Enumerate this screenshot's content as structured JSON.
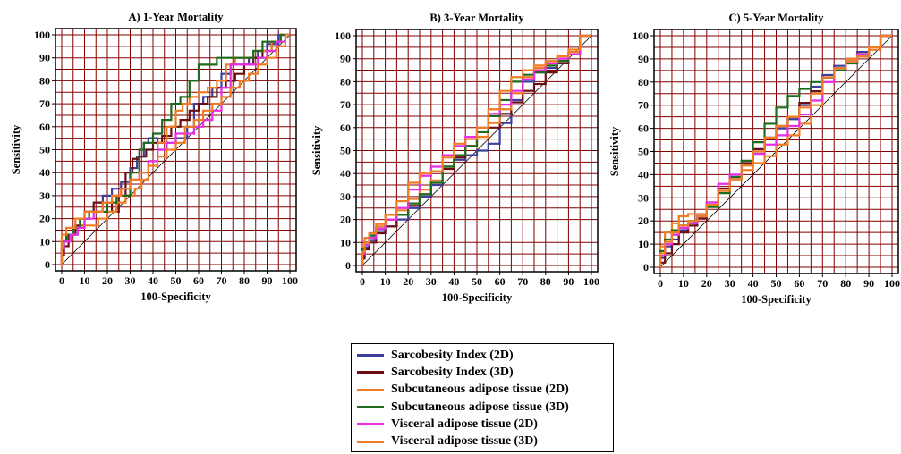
{
  "colors": {
    "grid": "#800000",
    "frame": "#000000",
    "reference": "#000000"
  },
  "axes": {
    "xlabel": "100-Specificity",
    "ylabel": "Sensitivity",
    "ticks": [
      "0",
      "10",
      "20",
      "30",
      "40",
      "50",
      "60",
      "70",
      "80",
      "90",
      "100"
    ]
  },
  "legend": {
    "entries": [
      {
        "name": "Sarcobesity Index (2D)",
        "color": "#3d3d9a"
      },
      {
        "name": "Sarcobesity Index (3D)",
        "color": "#6b0f14"
      },
      {
        "name": "Subcutaneous adipose tissue (2D)",
        "color": "#f07c24"
      },
      {
        "name": "Subcutaneous adipose tissue (3D)",
        "color": "#1e6b1e"
      },
      {
        "name": "Visceral adipose tissue (2D)",
        "color": "#e62ee6"
      },
      {
        "name": "Visceral adipose tissue (3D)",
        "color": "#f07c24"
      }
    ]
  },
  "chart_data": [
    {
      "type": "line",
      "title": "A) 1-Year Mortality",
      "xlabel": "100-Specificity",
      "ylabel": "Sensitivity",
      "xlim": [
        0,
        100
      ],
      "ylim": [
        0,
        100
      ],
      "grid": true,
      "reference_line": [
        [
          0,
          0
        ],
        [
          100,
          100
        ]
      ],
      "series": [
        {
          "name": "Sarcobesity Index (2D)",
          "color": "#3d3d9a",
          "x": [
            0,
            1,
            2,
            5,
            8,
            12,
            18,
            22,
            26,
            30,
            33,
            36,
            38,
            42,
            46,
            50,
            55,
            58,
            62,
            66,
            70,
            74,
            78,
            82,
            86,
            90,
            95,
            100
          ],
          "y": [
            0,
            6,
            10,
            13,
            16,
            20,
            23,
            30,
            33,
            36,
            42,
            47,
            53,
            55,
            50,
            53,
            55,
            60,
            70,
            73,
            77,
            83,
            87,
            87,
            90,
            93,
            96,
            100
          ]
        },
        {
          "name": "Sarcobesity Index (3D)",
          "color": "#6b0f14",
          "x": [
            0,
            1,
            3,
            6,
            10,
            14,
            18,
            22,
            25,
            28,
            31,
            34,
            37,
            40,
            44,
            48,
            52,
            56,
            60,
            64,
            68,
            72,
            76,
            80,
            84,
            88,
            92,
            96,
            100
          ],
          "y": [
            0,
            4,
            8,
            13,
            17,
            23,
            27,
            27,
            23,
            30,
            40,
            46,
            47,
            50,
            53,
            56,
            60,
            63,
            67,
            70,
            73,
            77,
            80,
            83,
            87,
            90,
            93,
            97,
            100
          ]
        },
        {
          "name": "Subcutaneous adipose tissue (2D)",
          "color": "#f07c24",
          "x": [
            0,
            2,
            5,
            8,
            12,
            16,
            20,
            24,
            28,
            32,
            35,
            38,
            42,
            46,
            50,
            53,
            56,
            60,
            64,
            68,
            72,
            76,
            80,
            84,
            88,
            92,
            96,
            100
          ],
          "y": [
            0,
            10,
            13,
            16,
            17,
            17,
            20,
            23,
            27,
            30,
            33,
            37,
            45,
            53,
            60,
            67,
            70,
            73,
            75,
            77,
            80,
            87,
            90,
            90,
            93,
            93,
            97,
            100
          ]
        },
        {
          "name": "Subcutaneous adipose tissue (3D)",
          "color": "#1e6b1e",
          "x": [
            0,
            2,
            5,
            8,
            12,
            16,
            20,
            24,
            28,
            30,
            34,
            36,
            40,
            44,
            48,
            52,
            56,
            60,
            64,
            68,
            72,
            76,
            80,
            84,
            88,
            92,
            96,
            100
          ],
          "y": [
            0,
            10,
            13,
            16,
            20,
            23,
            23,
            27,
            30,
            30,
            40,
            50,
            53,
            57,
            63,
            70,
            73,
            80,
            87,
            87,
            90,
            90,
            90,
            90,
            93,
            97,
            97,
            100
          ]
        },
        {
          "name": "Visceral adipose tissue (2D)",
          "color": "#e62ee6",
          "x": [
            0,
            1,
            4,
            7,
            10,
            14,
            18,
            22,
            26,
            30,
            34,
            38,
            42,
            46,
            50,
            54,
            58,
            62,
            66,
            70,
            74,
            78,
            82,
            86,
            90,
            94,
            98,
            100
          ],
          "y": [
            0,
            7,
            10,
            13,
            16,
            20,
            23,
            27,
            30,
            33,
            37,
            40,
            45,
            50,
            53,
            57,
            57,
            60,
            63,
            67,
            77,
            87,
            87,
            87,
            90,
            93,
            97,
            100
          ]
        },
        {
          "name": "Visceral adipose tissue (3D)",
          "color": "#f07c24",
          "x": [
            0,
            2,
            6,
            10,
            14,
            18,
            22,
            26,
            30,
            34,
            38,
            42,
            46,
            50,
            54,
            58,
            62,
            66,
            70,
            74,
            78,
            82,
            86,
            90,
            94,
            98,
            100
          ],
          "y": [
            0,
            13,
            16,
            20,
            23,
            23,
            27,
            30,
            33,
            37,
            40,
            43,
            47,
            50,
            53,
            60,
            63,
            67,
            70,
            73,
            77,
            80,
            83,
            87,
            90,
            95,
            100
          ]
        }
      ]
    },
    {
      "type": "line",
      "title": "B) 3-Year Mortality",
      "xlabel": "100-Specificity",
      "ylabel": "Sensitivity",
      "xlim": [
        0,
        100
      ],
      "ylim": [
        0,
        100
      ],
      "grid": true,
      "reference_line": [
        [
          0,
          0
        ],
        [
          100,
          100
        ]
      ],
      "series": [
        {
          "name": "Sarcobesity Index (2D)",
          "color": "#3d3d9a",
          "x": [
            0,
            1,
            3,
            6,
            10,
            15,
            20,
            25,
            30,
            35,
            40,
            45,
            50,
            55,
            60,
            65,
            70,
            75,
            80,
            85,
            90,
            95,
            100
          ],
          "y": [
            0,
            4,
            8,
            11,
            15,
            17,
            20,
            25,
            30,
            35,
            43,
            46,
            48,
            50,
            53,
            62,
            72,
            80,
            84,
            86,
            89,
            92,
            100
          ]
        },
        {
          "name": "Sarcobesity Index (3D)",
          "color": "#6b0f14",
          "x": [
            0,
            1,
            3,
            6,
            10,
            15,
            20,
            25,
            30,
            35,
            40,
            45,
            50,
            55,
            60,
            65,
            70,
            75,
            80,
            85,
            90,
            95,
            100
          ],
          "y": [
            0,
            3,
            7,
            10,
            14,
            17,
            22,
            26,
            31,
            36,
            42,
            47,
            52,
            56,
            60,
            66,
            71,
            76,
            79,
            84,
            88,
            92,
            100
          ]
        },
        {
          "name": "Subcutaneous adipose tissue (2D)",
          "color": "#f07c24",
          "x": [
            0,
            1,
            3,
            6,
            10,
            15,
            20,
            25,
            30,
            35,
            40,
            45,
            50,
            55,
            60,
            65,
            70,
            75,
            80,
            85,
            90,
            95,
            100
          ],
          "y": [
            0,
            8,
            12,
            14,
            17,
            20,
            24,
            29,
            33,
            37,
            43,
            48,
            52,
            56,
            62,
            68,
            75,
            82,
            86,
            88,
            90,
            93,
            100
          ]
        },
        {
          "name": "Subcutaneous adipose tissue (3D)",
          "color": "#1e6b1e",
          "x": [
            0,
            1,
            3,
            6,
            10,
            15,
            20,
            25,
            30,
            35,
            40,
            45,
            50,
            55,
            60,
            65,
            70,
            75,
            80,
            85,
            90,
            95,
            100
          ],
          "y": [
            0,
            7,
            10,
            13,
            16,
            20,
            22,
            27,
            31,
            36,
            43,
            48,
            52,
            58,
            65,
            72,
            80,
            83,
            84,
            87,
            89,
            92,
            100
          ]
        },
        {
          "name": "Visceral adipose tissue (2D)",
          "color": "#e62ee6",
          "x": [
            0,
            1,
            3,
            6,
            10,
            15,
            20,
            25,
            30,
            35,
            40,
            45,
            50,
            55,
            60,
            65,
            70,
            75,
            80,
            85,
            90,
            95,
            100
          ],
          "y": [
            0,
            5,
            9,
            12,
            16,
            20,
            25,
            33,
            39,
            43,
            48,
            52,
            56,
            60,
            66,
            70,
            76,
            81,
            85,
            88,
            90,
            92,
            100
          ]
        },
        {
          "name": "Visceral adipose tissue (3D)",
          "color": "#f07c24",
          "x": [
            0,
            1,
            3,
            6,
            10,
            15,
            20,
            25,
            30,
            35,
            40,
            45,
            50,
            55,
            60,
            65,
            70,
            75,
            80,
            85,
            90,
            95,
            100
          ],
          "y": [
            0,
            6,
            10,
            14,
            18,
            22,
            28,
            36,
            40,
            41,
            47,
            53,
            55,
            60,
            68,
            76,
            82,
            85,
            87,
            89,
            91,
            94,
            100
          ]
        }
      ]
    },
    {
      "type": "line",
      "title": "C) 5-Year Mortality",
      "xlabel": "100-Specificity",
      "ylabel": "Sensitivity",
      "xlim": [
        0,
        100
      ],
      "ylim": [
        0,
        100
      ],
      "grid": true,
      "reference_line": [
        [
          0,
          0
        ],
        [
          100,
          100
        ]
      ],
      "series": [
        {
          "name": "Sarcobesity Index (2D)",
          "color": "#3d3d9a",
          "x": [
            0,
            2,
            5,
            8,
            12,
            16,
            20,
            25,
            30,
            35,
            40,
            45,
            50,
            55,
            60,
            65,
            70,
            75,
            80,
            85,
            90,
            95,
            100
          ],
          "y": [
            0,
            4,
            9,
            12,
            16,
            19,
            22,
            28,
            34,
            38,
            44,
            50,
            56,
            60,
            64,
            70,
            78,
            83,
            87,
            90,
            93,
            95,
            100
          ]
        },
        {
          "name": "Sarcobesity Index (3D)",
          "color": "#6b0f14",
          "x": [
            0,
            2,
            5,
            8,
            12,
            16,
            20,
            25,
            30,
            35,
            40,
            45,
            50,
            55,
            60,
            65,
            70,
            75,
            80,
            85,
            90,
            95,
            100
          ],
          "y": [
            0,
            2,
            6,
            10,
            15,
            18,
            21,
            27,
            34,
            39,
            45,
            51,
            56,
            61,
            65,
            71,
            76,
            82,
            86,
            89,
            92,
            95,
            100
          ]
        },
        {
          "name": "Subcutaneous adipose tissue (2D)",
          "color": "#f07c24",
          "x": [
            0,
            2,
            5,
            8,
            12,
            16,
            20,
            25,
            30,
            35,
            40,
            45,
            50,
            55,
            60,
            65,
            70,
            75,
            80,
            85,
            90,
            95,
            100
          ],
          "y": [
            0,
            9,
            15,
            19,
            22,
            23,
            23,
            27,
            33,
            38,
            42,
            45,
            48,
            53,
            57,
            62,
            70,
            80,
            86,
            90,
            92,
            95,
            100
          ]
        },
        {
          "name": "Subcutaneous adipose tissue (3D)",
          "color": "#1e6b1e",
          "x": [
            0,
            2,
            5,
            8,
            12,
            16,
            20,
            25,
            30,
            35,
            40,
            45,
            50,
            55,
            60,
            65,
            70,
            75,
            80,
            85,
            90,
            95,
            100
          ],
          "y": [
            0,
            7,
            12,
            16,
            18,
            20,
            22,
            26,
            32,
            39,
            46,
            54,
            62,
            69,
            74,
            77,
            80,
            82,
            85,
            88,
            91,
            94,
            100
          ]
        },
        {
          "name": "Visceral adipose tissue (2D)",
          "color": "#e62ee6",
          "x": [
            0,
            2,
            5,
            8,
            12,
            16,
            20,
            25,
            30,
            35,
            40,
            45,
            50,
            55,
            60,
            65,
            70,
            75,
            80,
            85,
            90,
            95,
            100
          ],
          "y": [
            0,
            5,
            10,
            14,
            17,
            19,
            22,
            28,
            36,
            40,
            44,
            49,
            53,
            57,
            61,
            66,
            72,
            80,
            86,
            89,
            92,
            94,
            100
          ]
        },
        {
          "name": "Visceral adipose tissue (3D)",
          "color": "#f07c24",
          "x": [
            0,
            2,
            5,
            8,
            12,
            16,
            20,
            25,
            30,
            35,
            40,
            45,
            50,
            55,
            60,
            65,
            70,
            75,
            80,
            85,
            90,
            95,
            100
          ],
          "y": [
            0,
            6,
            11,
            15,
            18,
            20,
            22,
            27,
            33,
            38,
            44,
            50,
            56,
            61,
            65,
            69,
            75,
            82,
            86,
            89,
            91,
            94,
            100
          ]
        }
      ]
    }
  ]
}
